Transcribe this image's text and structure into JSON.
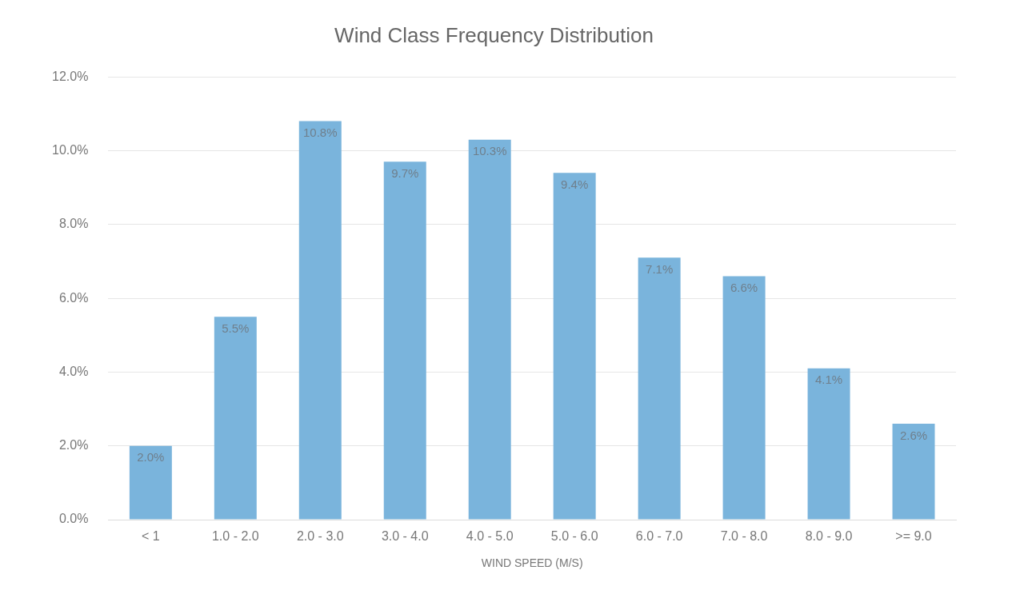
{
  "chart_data": {
    "type": "bar",
    "title": "Wind Class Frequency Distribution",
    "xlabel": "WIND SPEED (M/S)",
    "categories": [
      "< 1",
      "1.0 - 2.0",
      "2.0 - 3.0",
      "3.0 - 4.0",
      "4.0 - 5.0",
      "5.0 - 6.0",
      "6.0 - 7.0",
      "7.0 - 8.0",
      "8.0 - 9.0",
      ">= 9.0"
    ],
    "values": [
      2.0,
      5.5,
      10.8,
      9.7,
      10.3,
      9.4,
      7.1,
      6.6,
      4.1,
      2.6
    ],
    "value_labels": [
      "2.0%",
      "5.5%",
      "10.8%",
      "9.7%",
      "10.3%",
      "9.4%",
      "7.1%",
      "6.6%",
      "4.1%",
      "2.6%"
    ],
    "color": "#7ab4dc",
    "ylim": [
      0,
      12
    ],
    "yticks": [
      {
        "value": 0,
        "label": "0.0%"
      },
      {
        "value": 2,
        "label": "2.0%"
      },
      {
        "value": 4,
        "label": "4.0%"
      },
      {
        "value": 6,
        "label": "6.0%"
      },
      {
        "value": 8,
        "label": "8.0%"
      },
      {
        "value": 10,
        "label": "10.0%"
      },
      {
        "value": 12,
        "label": "12.0%"
      }
    ],
    "grid": "y",
    "legend": false
  }
}
